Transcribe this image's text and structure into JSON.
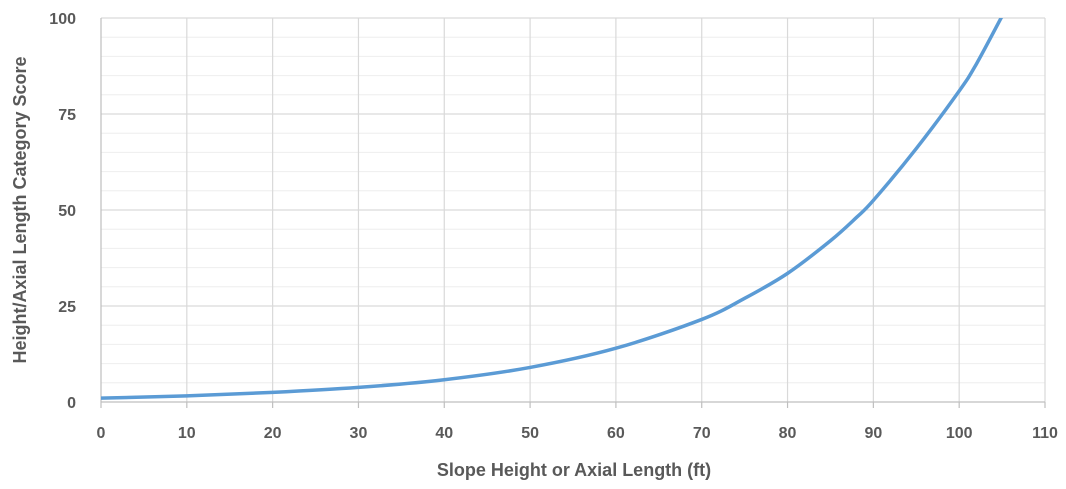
{
  "chart_data": {
    "type": "line",
    "title": "",
    "xlabel": "Slope Height or Axial Length (ft)",
    "ylabel": "Height/Axial Length Category Score",
    "xlim": [
      0,
      110
    ],
    "ylim": [
      0,
      100
    ],
    "x_ticks": [
      0,
      10,
      20,
      30,
      40,
      50,
      60,
      70,
      80,
      90,
      100,
      110
    ],
    "y_ticks": [
      0,
      25,
      50,
      75,
      100
    ],
    "x_tick_labels": [
      "0",
      "10",
      "20",
      "30",
      "40",
      "50",
      "60",
      "70",
      "80",
      "90",
      "100",
      "110"
    ],
    "y_tick_labels": [
      "0",
      "25",
      "50",
      "75",
      "100"
    ],
    "y_minor_step": 5,
    "grid": true,
    "legend": "none",
    "series_color": "#5b9bd5",
    "series": [
      {
        "x": [
          0,
          10,
          20,
          30,
          40,
          50,
          60,
          70,
          75,
          80,
          85,
          88,
          90,
          95,
          100,
          102,
          105
        ],
        "y": [
          1,
          1.6,
          2.5,
          3.8,
          5.8,
          9,
          14,
          21.5,
          27,
          33.5,
          42,
          48,
          52.5,
          66,
          81,
          88,
          100.5
        ]
      }
    ]
  }
}
